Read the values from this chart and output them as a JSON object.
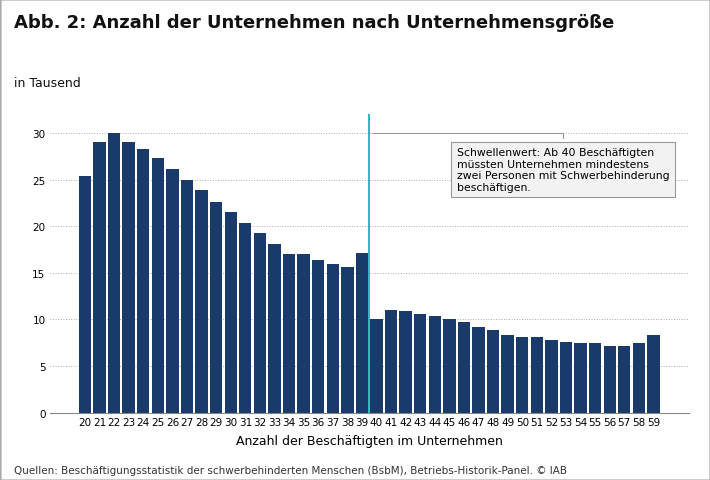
{
  "title": "Abb. 2: Anzahl der Unternehmen nach Unternehmensgröße",
  "subtitle": "in Tausend",
  "xlabel": "Anzahl der Beschäftigten im Unternehmen",
  "source": "Quellen: Beschäftigungsstatistik der schwerbehinderten Menschen (BsbM), Betriebs-Historik-Panel. © IAB",
  "categories": [
    20,
    21,
    22,
    23,
    24,
    25,
    26,
    27,
    28,
    29,
    30,
    31,
    32,
    33,
    34,
    35,
    36,
    37,
    38,
    39,
    40,
    41,
    42,
    43,
    44,
    45,
    46,
    47,
    48,
    49,
    50,
    51,
    52,
    53,
    54,
    55,
    56,
    57,
    58,
    59
  ],
  "values": [
    25.4,
    29.0,
    30.0,
    29.0,
    28.3,
    27.3,
    26.1,
    25.0,
    23.9,
    22.6,
    21.5,
    20.3,
    19.3,
    18.1,
    17.0,
    17.0,
    16.4,
    15.9,
    15.6,
    17.1,
    10.1,
    11.0,
    10.9,
    10.6,
    10.4,
    10.0,
    9.7,
    9.2,
    8.9,
    8.3,
    8.1,
    8.1,
    7.8,
    7.6,
    7.5,
    7.5,
    7.2,
    7.2,
    7.5,
    8.3
  ],
  "bar_color": "#1a3a6b",
  "threshold_line_color": "#00b0b0",
  "ylim": [
    0,
    32
  ],
  "yticks": [
    0,
    5,
    10,
    15,
    20,
    25,
    30
  ],
  "grid_color": "#aaaaaa",
  "bg_color": "#ffffff",
  "annotation_text": "Schwellenwert: Ab 40 Beschäftigten\nmüssten Unternehmen mindestens\nzwei Personen mit Schwerbehinderung\nbeschäftigen.",
  "title_fontsize": 13,
  "subtitle_fontsize": 9,
  "label_fontsize": 9,
  "tick_fontsize": 7.5,
  "source_fontsize": 7.5
}
